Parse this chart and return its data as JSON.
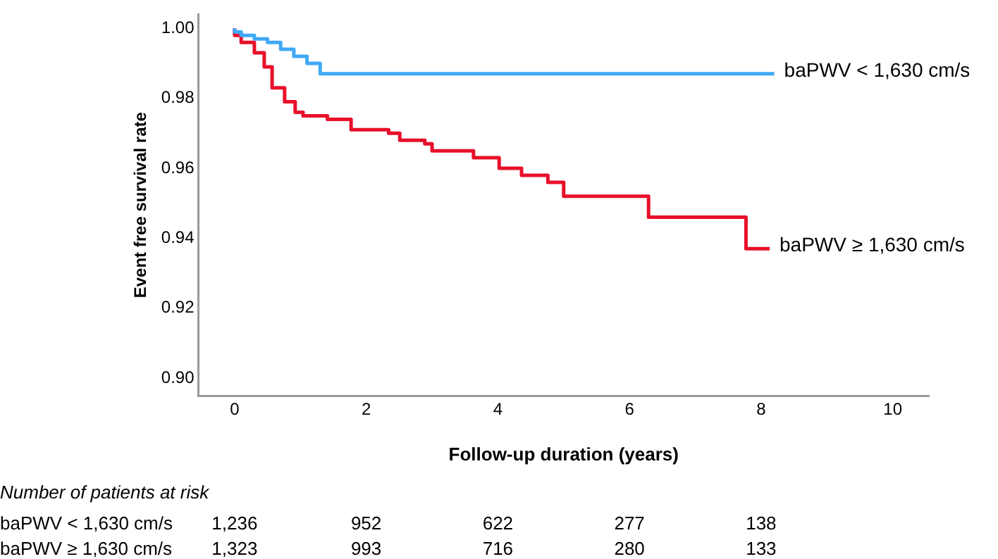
{
  "chart_data": {
    "type": "step",
    "xlabel": "Follow-up duration (years)",
    "ylabel": "Event free survival rate",
    "xlim": [
      -0.55,
      10.55
    ],
    "xticks": [
      0,
      2,
      4,
      6,
      8,
      10
    ],
    "ylim": [
      0.895,
      1.004
    ],
    "yticks": [
      {
        "value": 0.9,
        "label": "0.90"
      },
      {
        "value": 0.92,
        "label": "0.92"
      },
      {
        "value": 0.94,
        "label": "0.94"
      },
      {
        "value": 0.96,
        "label": "0.96"
      },
      {
        "value": 0.98,
        "label": "0.98"
      },
      {
        "value": 1,
        "label": "1.00"
      }
    ],
    "grid": false,
    "legend": false,
    "marker": "none",
    "line_style": "solid",
    "series": [
      {
        "name": "baPWV < 1,630 cm/s",
        "color": "#3fa9f5",
        "x": [
          0,
          0.1,
          0.3,
          0.5,
          0.7,
          0.9,
          1.1,
          1.3,
          5.25,
          8.2
        ],
        "values": [
          1,
          0.999,
          0.998,
          0.997,
          0.996,
          0.994,
          0.992,
          0.99,
          0.987,
          0.987
        ]
      },
      {
        "name": "baPWV ≥ 1,630 cm/s",
        "color": "#e8102a",
        "x": [
          0,
          0.1,
          0.3,
          0.45,
          0.57,
          0.76,
          0.92,
          1.04,
          1.41,
          1.77,
          2.34,
          2.51,
          2.89,
          3.0,
          3.15,
          3.63,
          4.02,
          4.36,
          4.76,
          5.0,
          6.29,
          7.77,
          8.13
        ],
        "values": [
          1,
          0.998,
          0.996,
          0.993,
          0.989,
          0.983,
          0.979,
          0.976,
          0.975,
          0.974,
          0.971,
          0.97,
          0.968,
          0.967,
          0.965,
          0.965,
          0.963,
          0.96,
          0.958,
          0.956,
          0.952,
          0.946,
          0.937
        ]
      }
    ],
    "annotations": [
      "Number of patients at risk",
      "baPWV < 1,630 cm/s",
      "1,236",
      "952",
      "622",
      "277",
      "138",
      "baPWV ≥ 1,630 cm/s",
      "1,323",
      "993",
      "716",
      "280",
      "133"
    ]
  }
}
